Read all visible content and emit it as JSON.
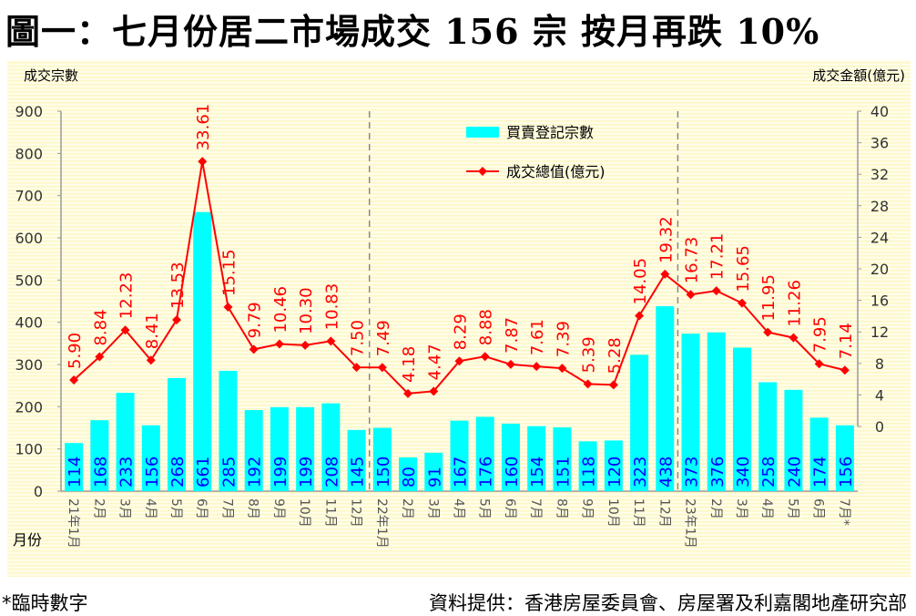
{
  "title": "圖一：七月份居二市場成交 156 宗  按月再跌 10%",
  "footnote": "*臨時數字",
  "source": "資料提供：香港房屋委員會、房屋署及利嘉閣地產研究部",
  "chart_data": {
    "type": "bar",
    "title": "圖一：七月份居二市場成交 156 宗  按月再跌 10%",
    "ylabel": "成交宗數",
    "y2label": "成交金額(億元)",
    "xlabel": "月份",
    "ylim": [
      0,
      900
    ],
    "yticks": [
      0,
      100,
      200,
      300,
      400,
      500,
      600,
      700,
      800,
      900
    ],
    "y2lim": [
      0,
      40
    ],
    "y2ticks": [
      0,
      4,
      8,
      12,
      16,
      20,
      24,
      28,
      32,
      36,
      40
    ],
    "legend_position": "top-center",
    "categories": [
      "21年1月",
      "2月",
      "3月",
      "4月",
      "5月",
      "6月",
      "7月",
      "8月",
      "9月",
      "10月",
      "11月",
      "12月",
      "22年1月",
      "2月",
      "3月",
      "4月",
      "5月",
      "6月",
      "7月",
      "8月",
      "9月",
      "10月",
      "11月",
      "12月",
      "23年1月",
      "2月",
      "3月",
      "4月",
      "5月",
      "6月",
      "7月*"
    ],
    "year_dividers_after": [
      11,
      23
    ],
    "series": [
      {
        "name": "買賣登記宗數",
        "type": "bar",
        "axis": "left",
        "color": "#00ffff",
        "label_color": "#0000ff",
        "values": [
          114,
          168,
          233,
          156,
          268,
          661,
          285,
          192,
          199,
          199,
          208,
          145,
          150,
          80,
          91,
          167,
          176,
          160,
          154,
          151,
          118,
          120,
          323,
          438,
          373,
          376,
          340,
          258,
          240,
          174,
          156
        ]
      },
      {
        "name": "成交總值(億元)",
        "type": "line",
        "axis": "right",
        "color": "#ff0000",
        "values": [
          5.9,
          8.84,
          12.23,
          8.41,
          13.53,
          33.61,
          15.15,
          9.79,
          10.46,
          10.3,
          10.83,
          7.5,
          7.49,
          4.18,
          4.47,
          8.29,
          8.88,
          7.87,
          7.61,
          7.39,
          5.39,
          5.28,
          14.05,
          19.32,
          16.73,
          17.21,
          15.65,
          11.95,
          11.26,
          7.95,
          7.14
        ]
      }
    ]
  }
}
